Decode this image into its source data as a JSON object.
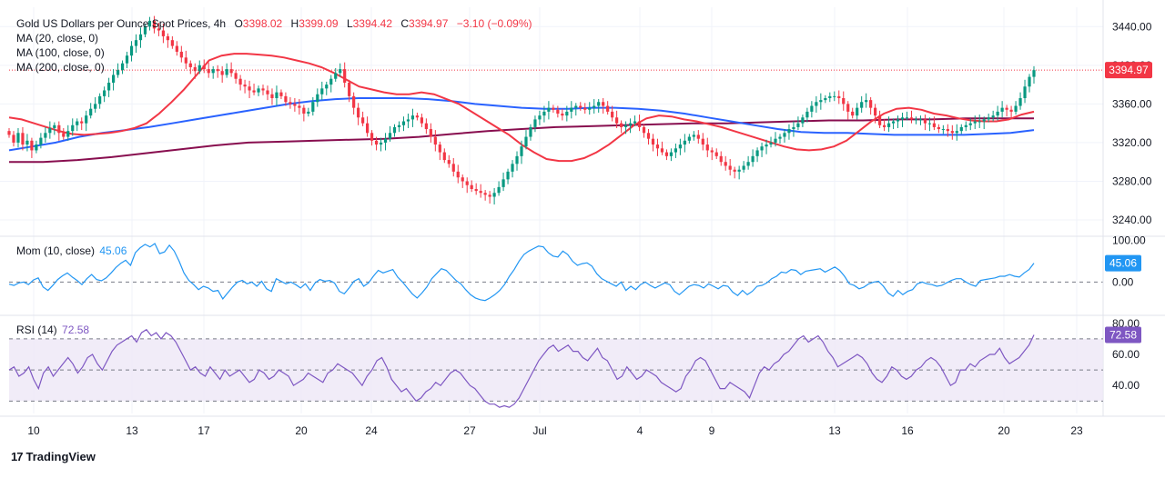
{
  "header": {
    "symbol_title": "Gold US Dollars per Ounce Spot Prices, 4h",
    "o_key": "O",
    "o_val": "3398.02",
    "h_key": "H",
    "h_val": "3399.09",
    "l_key": "L",
    "l_val": "3394.42",
    "c_key": "C",
    "c_val": "3394.97",
    "change": "−3.10 (−0.09%)"
  },
  "indicators": {
    "ma20": "MA (20, close, 0)",
    "ma100": "MA (100, close, 0)",
    "ma200": "MA (200, close, 0)",
    "mom_label": "Mom (10, close)",
    "mom_value": "45.06",
    "rsi_label": "RSI (14)",
    "rsi_value": "72.58"
  },
  "branding": {
    "name": "TradingView"
  },
  "colors": {
    "up": "#089981",
    "down": "#f23645",
    "ma20": "#f23645",
    "ma100": "#2962ff",
    "ma200": "#880e4f",
    "mom": "#2196f3",
    "rsi": "#7e57c2",
    "rsi_band": "#ede7f6"
  },
  "chart_data": [
    {
      "type": "candlestick",
      "title": "Gold US Dollars per Ounce Spot Prices, 4h",
      "x_tick_labels": [
        "10",
        "13",
        "17",
        "20",
        "24",
        "27",
        "Jul",
        "4",
        "9",
        "13",
        "16",
        "20",
        "23"
      ],
      "y_tick_labels": [
        "3440.00",
        "3400.00",
        "3360.00",
        "3320.00",
        "3280.00",
        "3240.00"
      ],
      "ylim": [
        3225,
        3460
      ],
      "last_price": "3394.97",
      "last_price_value": 3394.97,
      "close_series": [
        3328,
        3320,
        3330,
        3318,
        3322,
        3312,
        3318,
        3325,
        3330,
        3335,
        3338,
        3330,
        3326,
        3332,
        3338,
        3342,
        3340,
        3348,
        3355,
        3360,
        3368,
        3374,
        3382,
        3390,
        3395,
        3402,
        3410,
        3420,
        3426,
        3432,
        3440,
        3446,
        3438,
        3436,
        3430,
        3426,
        3420,
        3414,
        3408,
        3402,
        3398,
        3394,
        3400,
        3396,
        3392,
        3396,
        3394,
        3390,
        3396,
        3392,
        3386,
        3380,
        3378,
        3374,
        3372,
        3376,
        3374,
        3370,
        3366,
        3372,
        3368,
        3362,
        3360,
        3358,
        3356,
        3350,
        3352,
        3362,
        3370,
        3376,
        3380,
        3386,
        3392,
        3396,
        3382,
        3368,
        3356,
        3346,
        3340,
        3330,
        3322,
        3318,
        3320,
        3324,
        3330,
        3336,
        3338,
        3342,
        3344,
        3348,
        3346,
        3340,
        3334,
        3326,
        3318,
        3310,
        3302,
        3298,
        3290,
        3284,
        3280,
        3276,
        3272,
        3270,
        3268,
        3266,
        3264,
        3268,
        3274,
        3282,
        3290,
        3298,
        3306,
        3316,
        3326,
        3336,
        3344,
        3348,
        3352,
        3356,
        3354,
        3350,
        3348,
        3352,
        3356,
        3358,
        3356,
        3354,
        3356,
        3358,
        3362,
        3358,
        3352,
        3346,
        3340,
        3336,
        3338,
        3340,
        3342,
        3336,
        3330,
        3324,
        3318,
        3314,
        3310,
        3306,
        3310,
        3314,
        3318,
        3322,
        3326,
        3328,
        3324,
        3318,
        3312,
        3310,
        3306,
        3300,
        3296,
        3292,
        3290,
        3292,
        3296,
        3300,
        3306,
        3312,
        3316,
        3318,
        3320,
        3324,
        3326,
        3330,
        3334,
        3336,
        3340,
        3346,
        3352,
        3358,
        3362,
        3364,
        3366,
        3368,
        3368,
        3366,
        3360,
        3352,
        3348,
        3356,
        3362,
        3364,
        3356,
        3348,
        3338,
        3336,
        3340,
        3342,
        3344,
        3346,
        3346,
        3344,
        3344,
        3344,
        3340,
        3340,
        3336,
        3334,
        3334,
        3332,
        3330,
        3332,
        3336,
        3338,
        3340,
        3342,
        3342,
        3344,
        3346,
        3348,
        3352,
        3356,
        3354,
        3352,
        3358,
        3366,
        3378,
        3388,
        3394.97
      ],
      "ma20_series": [
        3346,
        3344,
        3340,
        3336,
        3332,
        3329,
        3328,
        3329,
        3330,
        3332,
        3335,
        3340,
        3350,
        3362,
        3375,
        3390,
        3405,
        3410,
        3412,
        3412,
        3411,
        3410,
        3408,
        3405,
        3402,
        3398,
        3392,
        3385,
        3378,
        3375,
        3372,
        3370,
        3370,
        3372,
        3370,
        3365,
        3360,
        3352,
        3344,
        3336,
        3328,
        3318,
        3310,
        3303,
        3301,
        3301,
        3304,
        3310,
        3318,
        3328,
        3338,
        3345,
        3348,
        3347,
        3344,
        3342,
        3339,
        3336,
        3332,
        3328,
        3324,
        3320,
        3316,
        3313,
        3312,
        3313,
        3316,
        3322,
        3332,
        3342,
        3350,
        3355,
        3356,
        3354,
        3350,
        3348,
        3345,
        3343,
        3342,
        3342,
        3344,
        3349,
        3352
      ],
      "ma100_series": [
        3312,
        3316,
        3320,
        3326,
        3330,
        3333,
        3336,
        3340,
        3344,
        3348,
        3352,
        3356,
        3360,
        3363,
        3365,
        3366,
        3366,
        3366,
        3365,
        3363,
        3360,
        3358,
        3356,
        3355,
        3355,
        3356,
        3356,
        3355,
        3353,
        3350,
        3346,
        3342,
        3338,
        3334,
        3331,
        3330,
        3330,
        3329,
        3328,
        3328,
        3328,
        3328,
        3329,
        3330,
        3333
      ],
      "ma200_series": [
        3300,
        3300,
        3302,
        3305,
        3309,
        3313,
        3317,
        3320,
        3321,
        3322,
        3323,
        3324,
        3326,
        3329,
        3332,
        3334,
        3336,
        3337,
        3338,
        3339,
        3340,
        3340,
        3341,
        3342,
        3343,
        3343,
        3344,
        3344,
        3345,
        3345,
        3345
      ]
    },
    {
      "type": "line",
      "title": "Mom (10, close)",
      "y_tick_labels": [
        "100.00",
        "0.00"
      ],
      "ylim": [
        -75,
        105
      ],
      "last_value": 45.06,
      "series": [
        {
          "name": "Mom (10, close)",
          "values": [
            -5,
            -8,
            -2,
            0,
            -6,
            5,
            10,
            -12,
            -20,
            -8,
            6,
            15,
            22,
            12,
            4,
            -6,
            8,
            18,
            6,
            3,
            10,
            22,
            35,
            45,
            52,
            40,
            70,
            82,
            90,
            84,
            92,
            68,
            72,
            88,
            74,
            50,
            22,
            4,
            -6,
            -18,
            -10,
            -14,
            -22,
            -20,
            -40,
            -26,
            -12,
            0,
            4,
            -4,
            0,
            -10,
            2,
            -16,
            -22,
            8,
            2,
            -4,
            0,
            -6,
            -14,
            -4,
            -20,
            -2,
            6,
            2,
            4,
            -2,
            -22,
            -28,
            -14,
            2,
            8,
            -10,
            -2,
            14,
            28,
            22,
            26,
            30,
            12,
            0,
            -14,
            -28,
            -38,
            -26,
            -12,
            8,
            20,
            32,
            28,
            16,
            4,
            -4,
            -18,
            -30,
            -38,
            -42,
            -44,
            -38,
            -30,
            -20,
            -6,
            14,
            30,
            50,
            66,
            74,
            80,
            86,
            84,
            70,
            62,
            60,
            74,
            66,
            50,
            40,
            44,
            46,
            38,
            20,
            8,
            2,
            -4,
            -10,
            0,
            -20,
            -10,
            -18,
            -6,
            0,
            -8,
            -14,
            -8,
            -2,
            -6,
            -22,
            -30,
            -20,
            -10,
            -6,
            -8,
            -14,
            -4,
            -10,
            -16,
            -8,
            -10,
            -24,
            -32,
            -20,
            -30,
            -22,
            -10,
            -8,
            -2,
            8,
            14,
            24,
            22,
            30,
            28,
            18,
            26,
            28,
            30,
            32,
            24,
            30,
            36,
            28,
            14,
            -4,
            -8,
            -16,
            -12,
            -4,
            0,
            2,
            -10,
            -26,
            -34,
            -20,
            -30,
            -22,
            -18,
            -4,
            0,
            -4,
            -6,
            -10,
            -8,
            -2,
            4,
            8,
            8,
            0,
            -6,
            -10,
            4,
            6,
            8,
            10,
            14,
            14,
            18,
            14,
            12,
            22,
            30,
            45.06
          ]
        }
      ]
    },
    {
      "type": "line",
      "title": "RSI (14)",
      "y_tick_labels": [
        "80.00",
        "60.00",
        "40.00"
      ],
      "ylim": [
        22,
        84
      ],
      "band": [
        30,
        70
      ],
      "midline": 50,
      "last_value": 72.58,
      "series": [
        {
          "name": "RSI (14)",
          "values": [
            50,
            52,
            46,
            48,
            52,
            44,
            38,
            48,
            52,
            46,
            50,
            54,
            58,
            54,
            48,
            52,
            58,
            60,
            54,
            50,
            56,
            62,
            66,
            68,
            70,
            72,
            68,
            74,
            76,
            72,
            74,
            70,
            74,
            72,
            68,
            62,
            56,
            50,
            52,
            48,
            46,
            52,
            48,
            44,
            50,
            46,
            48,
            50,
            46,
            42,
            44,
            50,
            48,
            44,
            46,
            50,
            48,
            46,
            40,
            42,
            44,
            48,
            46,
            44,
            42,
            48,
            50,
            54,
            52,
            50,
            48,
            44,
            40,
            46,
            50,
            56,
            58,
            52,
            44,
            40,
            36,
            38,
            34,
            30,
            32,
            36,
            38,
            42,
            40,
            44,
            48,
            50,
            48,
            44,
            40,
            38,
            34,
            30,
            28,
            28,
            26,
            27,
            26,
            28,
            32,
            38,
            44,
            50,
            56,
            60,
            64,
            66,
            62,
            64,
            66,
            62,
            62,
            58,
            56,
            60,
            64,
            58,
            56,
            50,
            44,
            46,
            52,
            48,
            44,
            46,
            50,
            48,
            46,
            42,
            40,
            38,
            36,
            38,
            46,
            50,
            56,
            58,
            56,
            50,
            44,
            38,
            38,
            42,
            40,
            38,
            36,
            32,
            40,
            48,
            52,
            50,
            54,
            56,
            60,
            62,
            66,
            70,
            72,
            68,
            70,
            72,
            68,
            62,
            58,
            52,
            54,
            56,
            58,
            60,
            58,
            54,
            48,
            44,
            42,
            46,
            52,
            50,
            46,
            44,
            46,
            50,
            52,
            56,
            58,
            56,
            52,
            46,
            40,
            42,
            50,
            50,
            54,
            52,
            56,
            58,
            60,
            60,
            64,
            58,
            54,
            56,
            58,
            62,
            66,
            72.58
          ]
        }
      ]
    }
  ]
}
